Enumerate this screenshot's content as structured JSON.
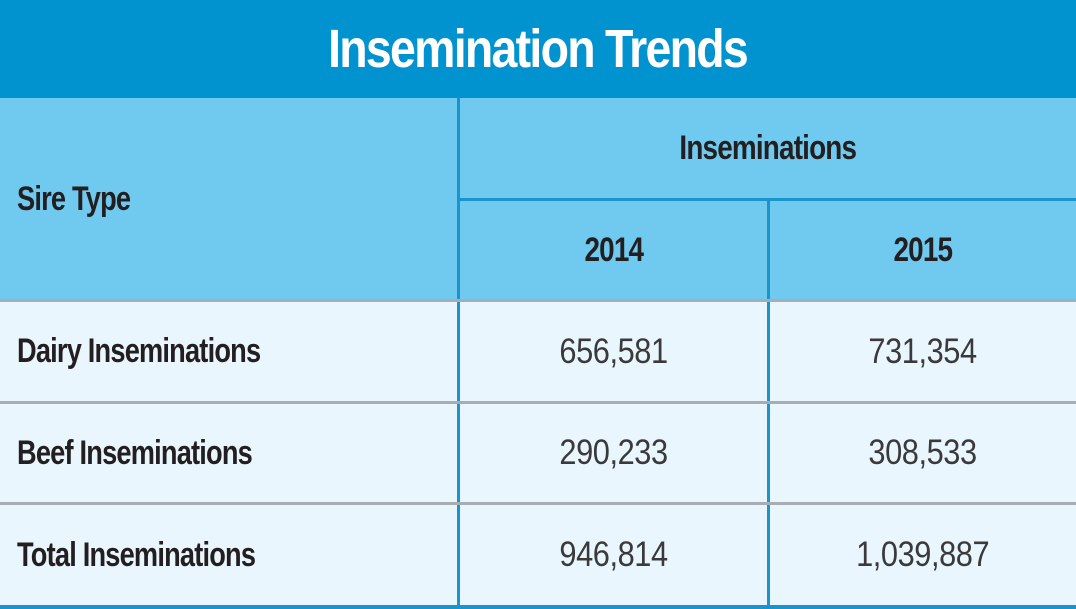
{
  "title": "Insemination Trends",
  "header": {
    "sire_type": "Sire Type",
    "group": "Inseminations",
    "years": [
      "2014",
      "2015"
    ]
  },
  "rows": [
    {
      "label": "Dairy Inseminations",
      "values": [
        "656,581",
        "731,354"
      ]
    },
    {
      "label": "Beef Inseminations",
      "values": [
        "290,233",
        "308,533"
      ]
    },
    {
      "label": "Total Inseminations",
      "values": [
        "946,814",
        "1,039,887"
      ]
    }
  ],
  "colors": {
    "title_bg": "#0093cf",
    "header_bg": "#70c9ef",
    "body_bg": "#eaf6fd",
    "divider_blue": "#1994cc",
    "divider_gray": "#a8adb3"
  }
}
